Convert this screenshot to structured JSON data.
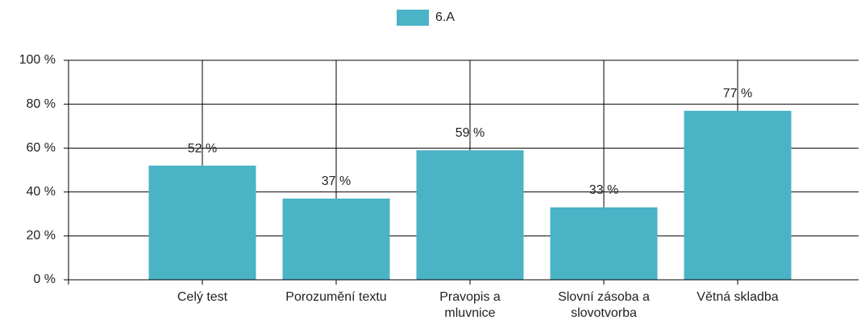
{
  "chart_data": {
    "type": "bar",
    "legend": {
      "position": "top"
    },
    "series": [
      {
        "name": "6.A",
        "color": "#4ab3c6",
        "values": [
          52,
          37,
          59,
          33,
          77
        ],
        "value_labels": [
          "52 %",
          "37 %",
          "59 %",
          "33 %",
          "77 %"
        ]
      }
    ],
    "categories": [
      "Celý test",
      "Porozumění textu",
      "Pravopis a mluvnice",
      "Slovní zásoba a slovotvorba",
      "Větná skladba"
    ],
    "ylim": [
      0,
      100
    ],
    "yticks": [
      {
        "value": 0,
        "label": "0 %"
      },
      {
        "value": 20,
        "label": "20 %"
      },
      {
        "value": 40,
        "label": "40 %"
      },
      {
        "value": 60,
        "label": "60 %"
      },
      {
        "value": 80,
        "label": "80 %"
      },
      {
        "value": 100,
        "label": "100 %"
      }
    ],
    "grid": true
  }
}
